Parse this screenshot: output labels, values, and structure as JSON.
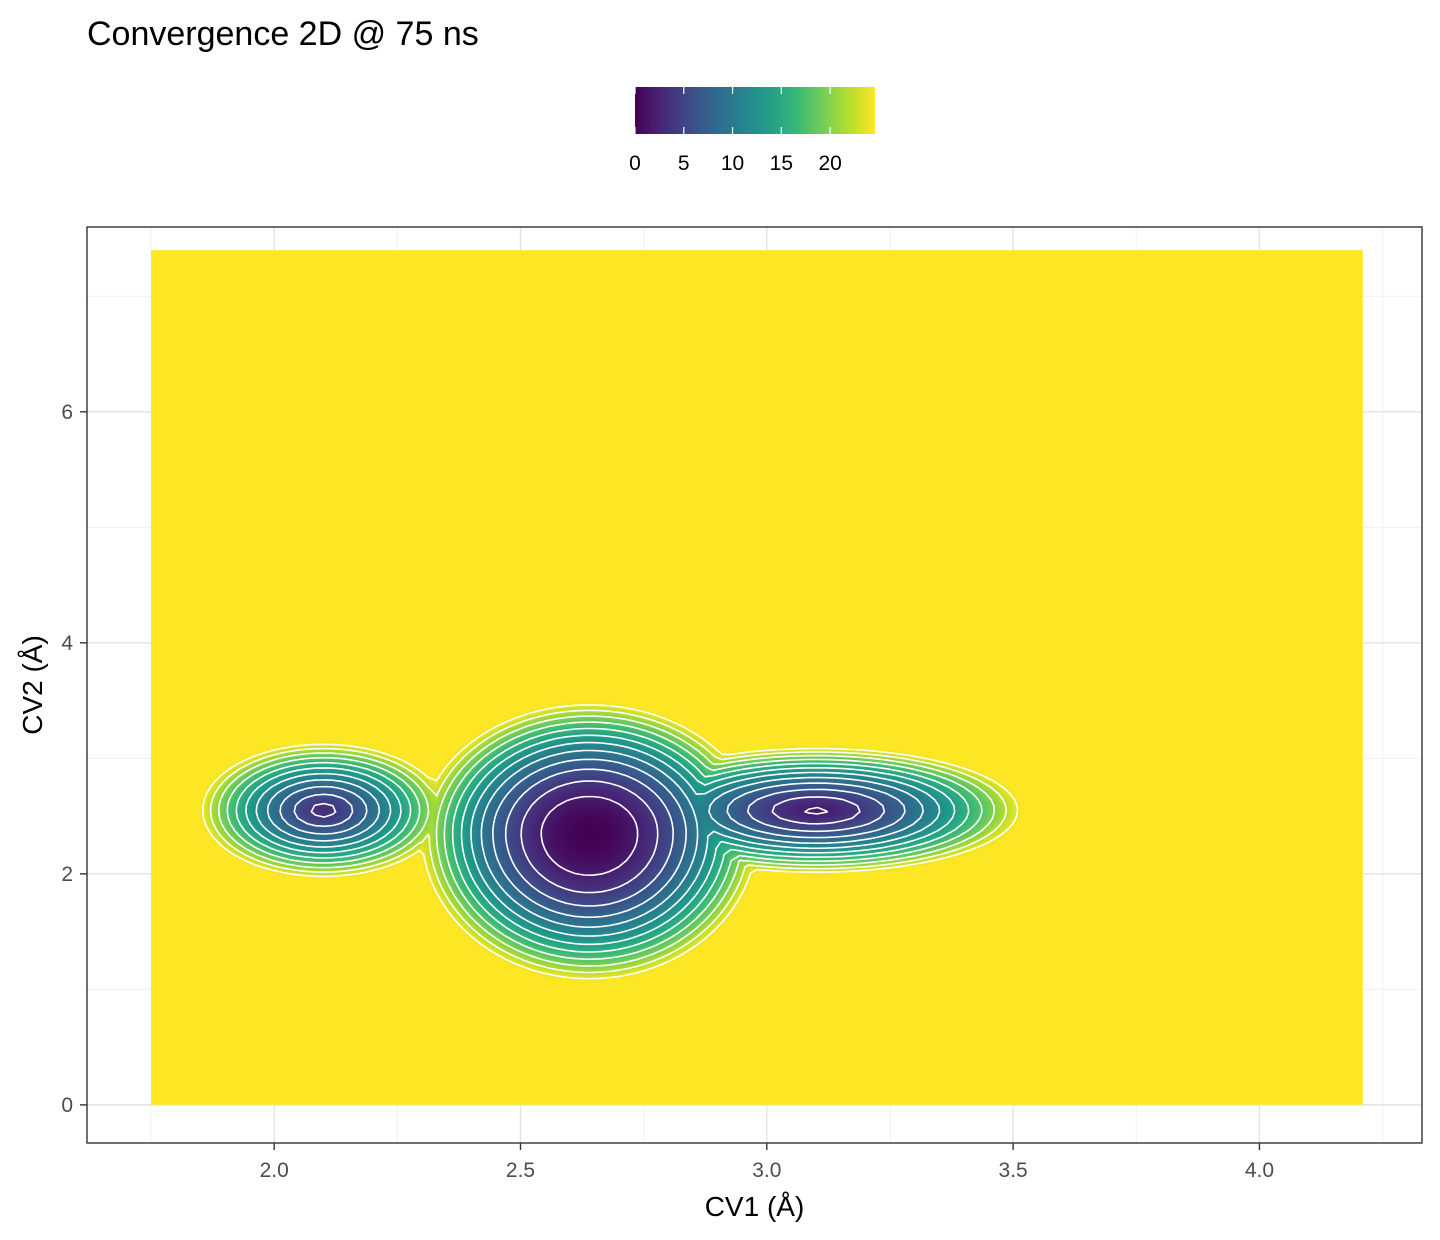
{
  "chart_data": {
    "type": "heatmap",
    "title": "Convergence 2D @ 75 ns",
    "xlabel": "CV1 (Å)",
    "ylabel": "CV2 (Å)",
    "xlim": [
      1.62,
      4.33
    ],
    "ylim": [
      -0.33,
      7.6
    ],
    "x_ticks": [
      2.0,
      2.5,
      3.0,
      3.5,
      4.0
    ],
    "x_tick_labels": [
      "2.0",
      "2.5",
      "3.0",
      "3.5",
      "4.0"
    ],
    "y_ticks": [
      0,
      2,
      4,
      6
    ],
    "y_tick_labels": [
      "0",
      "2",
      "4",
      "6"
    ],
    "x_minor_ticks": [
      1.75,
      2.25,
      2.75,
      3.25,
      3.75,
      4.25
    ],
    "y_minor_ticks": [
      1,
      3,
      5,
      7
    ],
    "data_extent": {
      "x": [
        1.75,
        4.21
      ],
      "y": [
        0.0,
        7.4
      ]
    },
    "grid": true,
    "colormap": "viridis",
    "fill_max_color": "#fde725",
    "contour_color": "#ffffff",
    "legend": {
      "placement": "top",
      "range": [
        0,
        24.6
      ],
      "ticks": [
        0,
        5,
        10,
        15,
        20
      ],
      "tick_labels": [
        "0",
        "5",
        "10",
        "15",
        "20"
      ]
    },
    "minimum": {
      "x": 2.64,
      "y": 2.35,
      "value": 0
    },
    "contour_levels": [
      2,
      4,
      6,
      8,
      10,
      12,
      14,
      16,
      18,
      20,
      22,
      24
    ]
  }
}
